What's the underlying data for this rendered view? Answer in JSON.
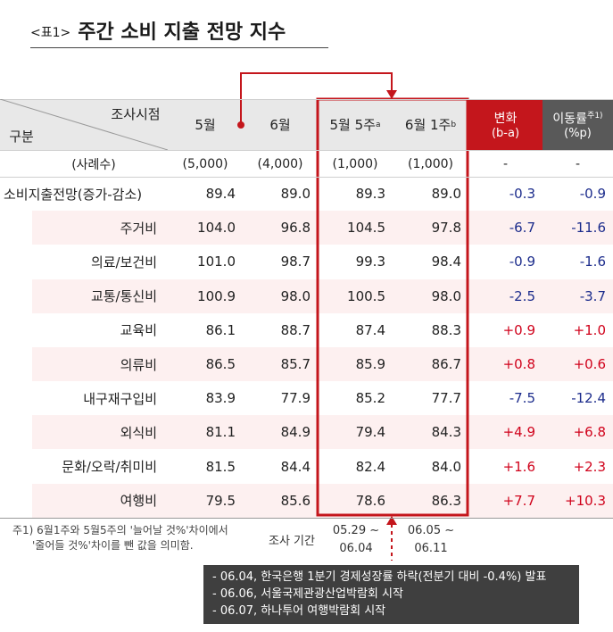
{
  "title": {
    "tag": "<표1>",
    "text": "주간 소비 지출 전망 지수"
  },
  "header": {
    "corner_top": "조사시점",
    "corner_bottom": "구분",
    "cols": [
      "5월",
      "6월",
      "5월 5주",
      "6월 1주"
    ],
    "col_sup": [
      "",
      "",
      "a",
      "b"
    ],
    "change": {
      "label": "변화",
      "sub": "(b-a)"
    },
    "moving": {
      "label": "이동률",
      "sup": "주1)",
      "sub": "(%p)"
    }
  },
  "sample_row": {
    "label": "(사례수)",
    "values": [
      "(5,000)",
      "(4,000)",
      "(1,000)",
      "(1,000)",
      "-",
      "-"
    ]
  },
  "rows": [
    {
      "label": "소비지출전망(증가-감소)",
      "values": [
        "89.4",
        "89.0",
        "89.3",
        "89.0"
      ],
      "change": "-0.3",
      "moving": "-0.9"
    },
    {
      "label": "주거비",
      "values": [
        "104.0",
        "96.8",
        "104.5",
        "97.8"
      ],
      "change": "-6.7",
      "moving": "-11.6"
    },
    {
      "label": "의료/보건비",
      "values": [
        "101.0",
        "98.7",
        "99.3",
        "98.4"
      ],
      "change": "-0.9",
      "moving": "-1.6"
    },
    {
      "label": "교통/통신비",
      "values": [
        "100.9",
        "98.0",
        "100.5",
        "98.0"
      ],
      "change": "-2.5",
      "moving": "-3.7"
    },
    {
      "label": "교육비",
      "values": [
        "86.1",
        "88.7",
        "87.4",
        "88.3"
      ],
      "change": "+0.9",
      "moving": "+1.0"
    },
    {
      "label": "의류비",
      "values": [
        "86.5",
        "85.7",
        "85.9",
        "86.7"
      ],
      "change": "+0.8",
      "moving": "+0.6"
    },
    {
      "label": "내구재구입비",
      "values": [
        "83.9",
        "77.9",
        "85.2",
        "77.7"
      ],
      "change": "-7.5",
      "moving": "-12.4"
    },
    {
      "label": "외식비",
      "values": [
        "81.1",
        "84.9",
        "79.4",
        "84.3"
      ],
      "change": "+4.9",
      "moving": "+6.8"
    },
    {
      "label": "문화/오락/취미비",
      "values": [
        "81.5",
        "84.4",
        "82.4",
        "84.0"
      ],
      "change": "+1.6",
      "moving": "+2.3"
    },
    {
      "label": "여행비",
      "values": [
        "79.5",
        "85.6",
        "78.6",
        "86.3"
      ],
      "change": "+7.7",
      "moving": "+10.3"
    }
  ],
  "footnote": [
    "주1) 6월1주와 5월5주의 '늘어날 것%'차이에서",
    "'줄어들 것%'차이를 뺀 값을 의미함."
  ],
  "survey_period": {
    "label": "조사 기간",
    "week_a": [
      "05.29 ~",
      "06.04"
    ],
    "week_b": [
      "06.05 ~",
      "06.11"
    ]
  },
  "events": [
    "- 06.04, 한국은행 1분기 경제성장률 하락(전분기 대비 -0.4%) 발표",
    "- 06.06, 서울국제관광산업박람회 시작",
    "- 06.07, 하나투어 여행박람회 시작"
  ],
  "colors": {
    "accent_red": "#c4161c",
    "header_gray": "#595959",
    "negative": "#1c2c8c",
    "positive": "#d0021b"
  }
}
